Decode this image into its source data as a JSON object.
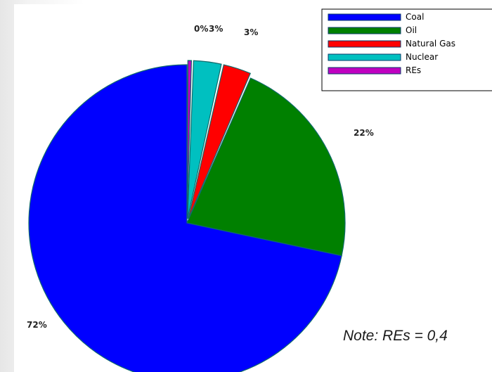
{
  "chart_data": {
    "type": "pie",
    "title": "",
    "categories": [
      "Coal",
      "Oil",
      "Natural Gas",
      "Nuclear",
      "REs"
    ],
    "values": [
      72,
      22,
      3,
      3,
      0
    ],
    "value_labels": [
      "72%",
      "22%",
      "3%",
      "3%",
      "0%"
    ],
    "colors": [
      "#0000ff",
      "#008000",
      "#ff0000",
      "#00c0c0",
      "#c000c0"
    ],
    "slice_border_color": "#0f6b6b",
    "exploded_slices": [
      "Natural Gas",
      "Nuclear",
      "REs"
    ],
    "start_angle_deg": 0,
    "direction": "clockwise",
    "legend": {
      "placement": "top-right",
      "entries": [
        "Coal",
        "Oil",
        "Natural Gas",
        "Nuclear",
        "REs"
      ]
    }
  },
  "note": {
    "text": "Note: REs = 0,4"
  }
}
